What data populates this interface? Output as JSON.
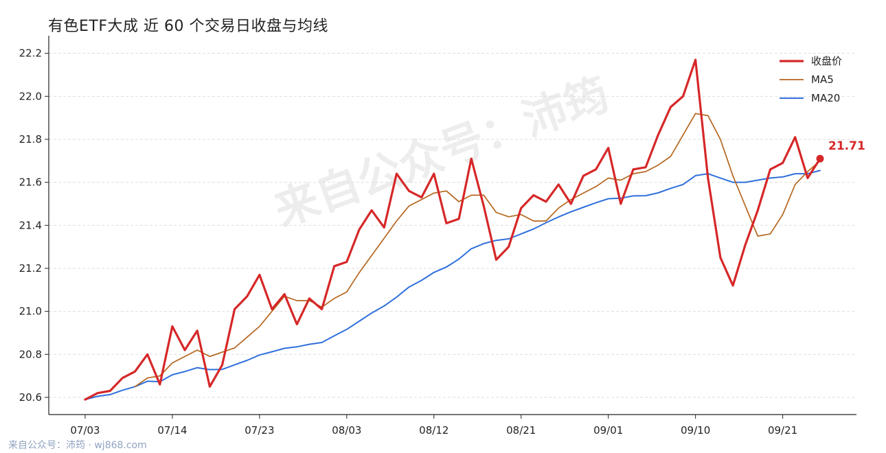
{
  "title": "有色ETF大成 近 60 个交易日收盘与均线",
  "footer": "来自公众号：沛筠 · wj868.com",
  "watermark": "来自公众号：沛筠",
  "colors": {
    "close": "#d62728",
    "ma5": "#b5651d",
    "ma20": "#2f6fdc",
    "grid": "#dddddd"
  },
  "chart_data": {
    "type": "line",
    "title": "有色ETF大成 近 60 个交易日收盘与均线",
    "xlabel": "",
    "ylabel": "",
    "ylim": [
      20.52,
      22.25
    ],
    "yticks": [
      "20.6",
      "20.8",
      "21.0",
      "21.2",
      "21.4",
      "21.6",
      "21.8",
      "22.0",
      "22.2"
    ],
    "xtick_labels": [
      {
        "index": 0,
        "label": "07/03"
      },
      {
        "index": 7,
        "label": "07/14"
      },
      {
        "index": 14,
        "label": "07/23"
      },
      {
        "index": 21,
        "label": "08/03"
      },
      {
        "index": 28,
        "label": "08/12"
      },
      {
        "index": 35,
        "label": "08/21"
      },
      {
        "index": 42,
        "label": "09/01"
      },
      {
        "index": 49,
        "label": "09/10"
      },
      {
        "index": 56,
        "label": "09/21"
      }
    ],
    "grid": true,
    "legend_position": "top-right",
    "last_value_label": "21.71",
    "series": [
      {
        "name": "收盘价",
        "values": [
          20.59,
          20.62,
          20.63,
          20.69,
          20.72,
          20.8,
          20.66,
          20.93,
          20.82,
          20.91,
          20.65,
          20.75,
          21.01,
          21.07,
          21.17,
          21.01,
          21.08,
          20.94,
          21.06,
          21.01,
          21.21,
          21.23,
          21.38,
          21.47,
          21.39,
          21.64,
          21.56,
          21.53,
          21.64,
          21.41,
          21.43,
          21.71,
          21.49,
          21.24,
          21.3,
          21.48,
          21.54,
          21.51,
          21.59,
          21.5,
          21.63,
          21.66,
          21.76,
          21.5,
          21.66,
          21.67,
          21.82,
          21.95,
          22.0,
          22.17,
          21.62,
          21.25,
          21.12,
          21.31,
          21.47,
          21.66,
          21.69,
          21.81,
          21.62,
          21.71
        ]
      },
      {
        "name": "MA5",
        "values": [
          null,
          null,
          null,
          null,
          20.65,
          20.69,
          20.7,
          20.76,
          20.79,
          20.82,
          20.79,
          20.81,
          20.83,
          20.88,
          20.93,
          21.0,
          21.07,
          21.05,
          21.05,
          21.02,
          21.06,
          21.09,
          21.18,
          21.26,
          21.34,
          21.42,
          21.49,
          21.52,
          21.55,
          21.56,
          21.51,
          21.54,
          21.54,
          21.46,
          21.44,
          21.45,
          21.42,
          21.42,
          21.48,
          21.52,
          21.55,
          21.58,
          21.62,
          21.61,
          21.64,
          21.65,
          21.68,
          21.72,
          21.82,
          21.92,
          21.91,
          21.8,
          21.63,
          21.49,
          21.35,
          21.36,
          21.45,
          21.59,
          21.65,
          21.7
        ]
      },
      {
        "name": "MA20",
        "values": [
          20.59,
          20.605,
          20.613,
          20.633,
          20.65,
          20.675,
          20.673,
          20.705,
          20.72,
          20.738,
          20.729,
          20.73,
          20.751,
          20.772,
          20.797,
          20.812,
          20.828,
          20.835,
          20.847,
          20.855,
          20.886,
          20.916,
          20.954,
          20.992,
          21.025,
          21.066,
          21.113,
          21.144,
          21.181,
          21.206,
          21.243,
          21.291,
          21.315,
          21.33,
          21.337,
          21.36,
          21.383,
          21.412,
          21.439,
          21.463,
          21.484,
          21.505,
          21.524,
          21.526,
          21.537,
          21.538,
          21.551,
          21.572,
          21.59,
          21.631,
          21.64,
          21.62,
          21.6,
          21.6,
          21.61,
          21.62,
          21.625,
          21.64,
          21.64,
          21.655
        ]
      }
    ]
  }
}
